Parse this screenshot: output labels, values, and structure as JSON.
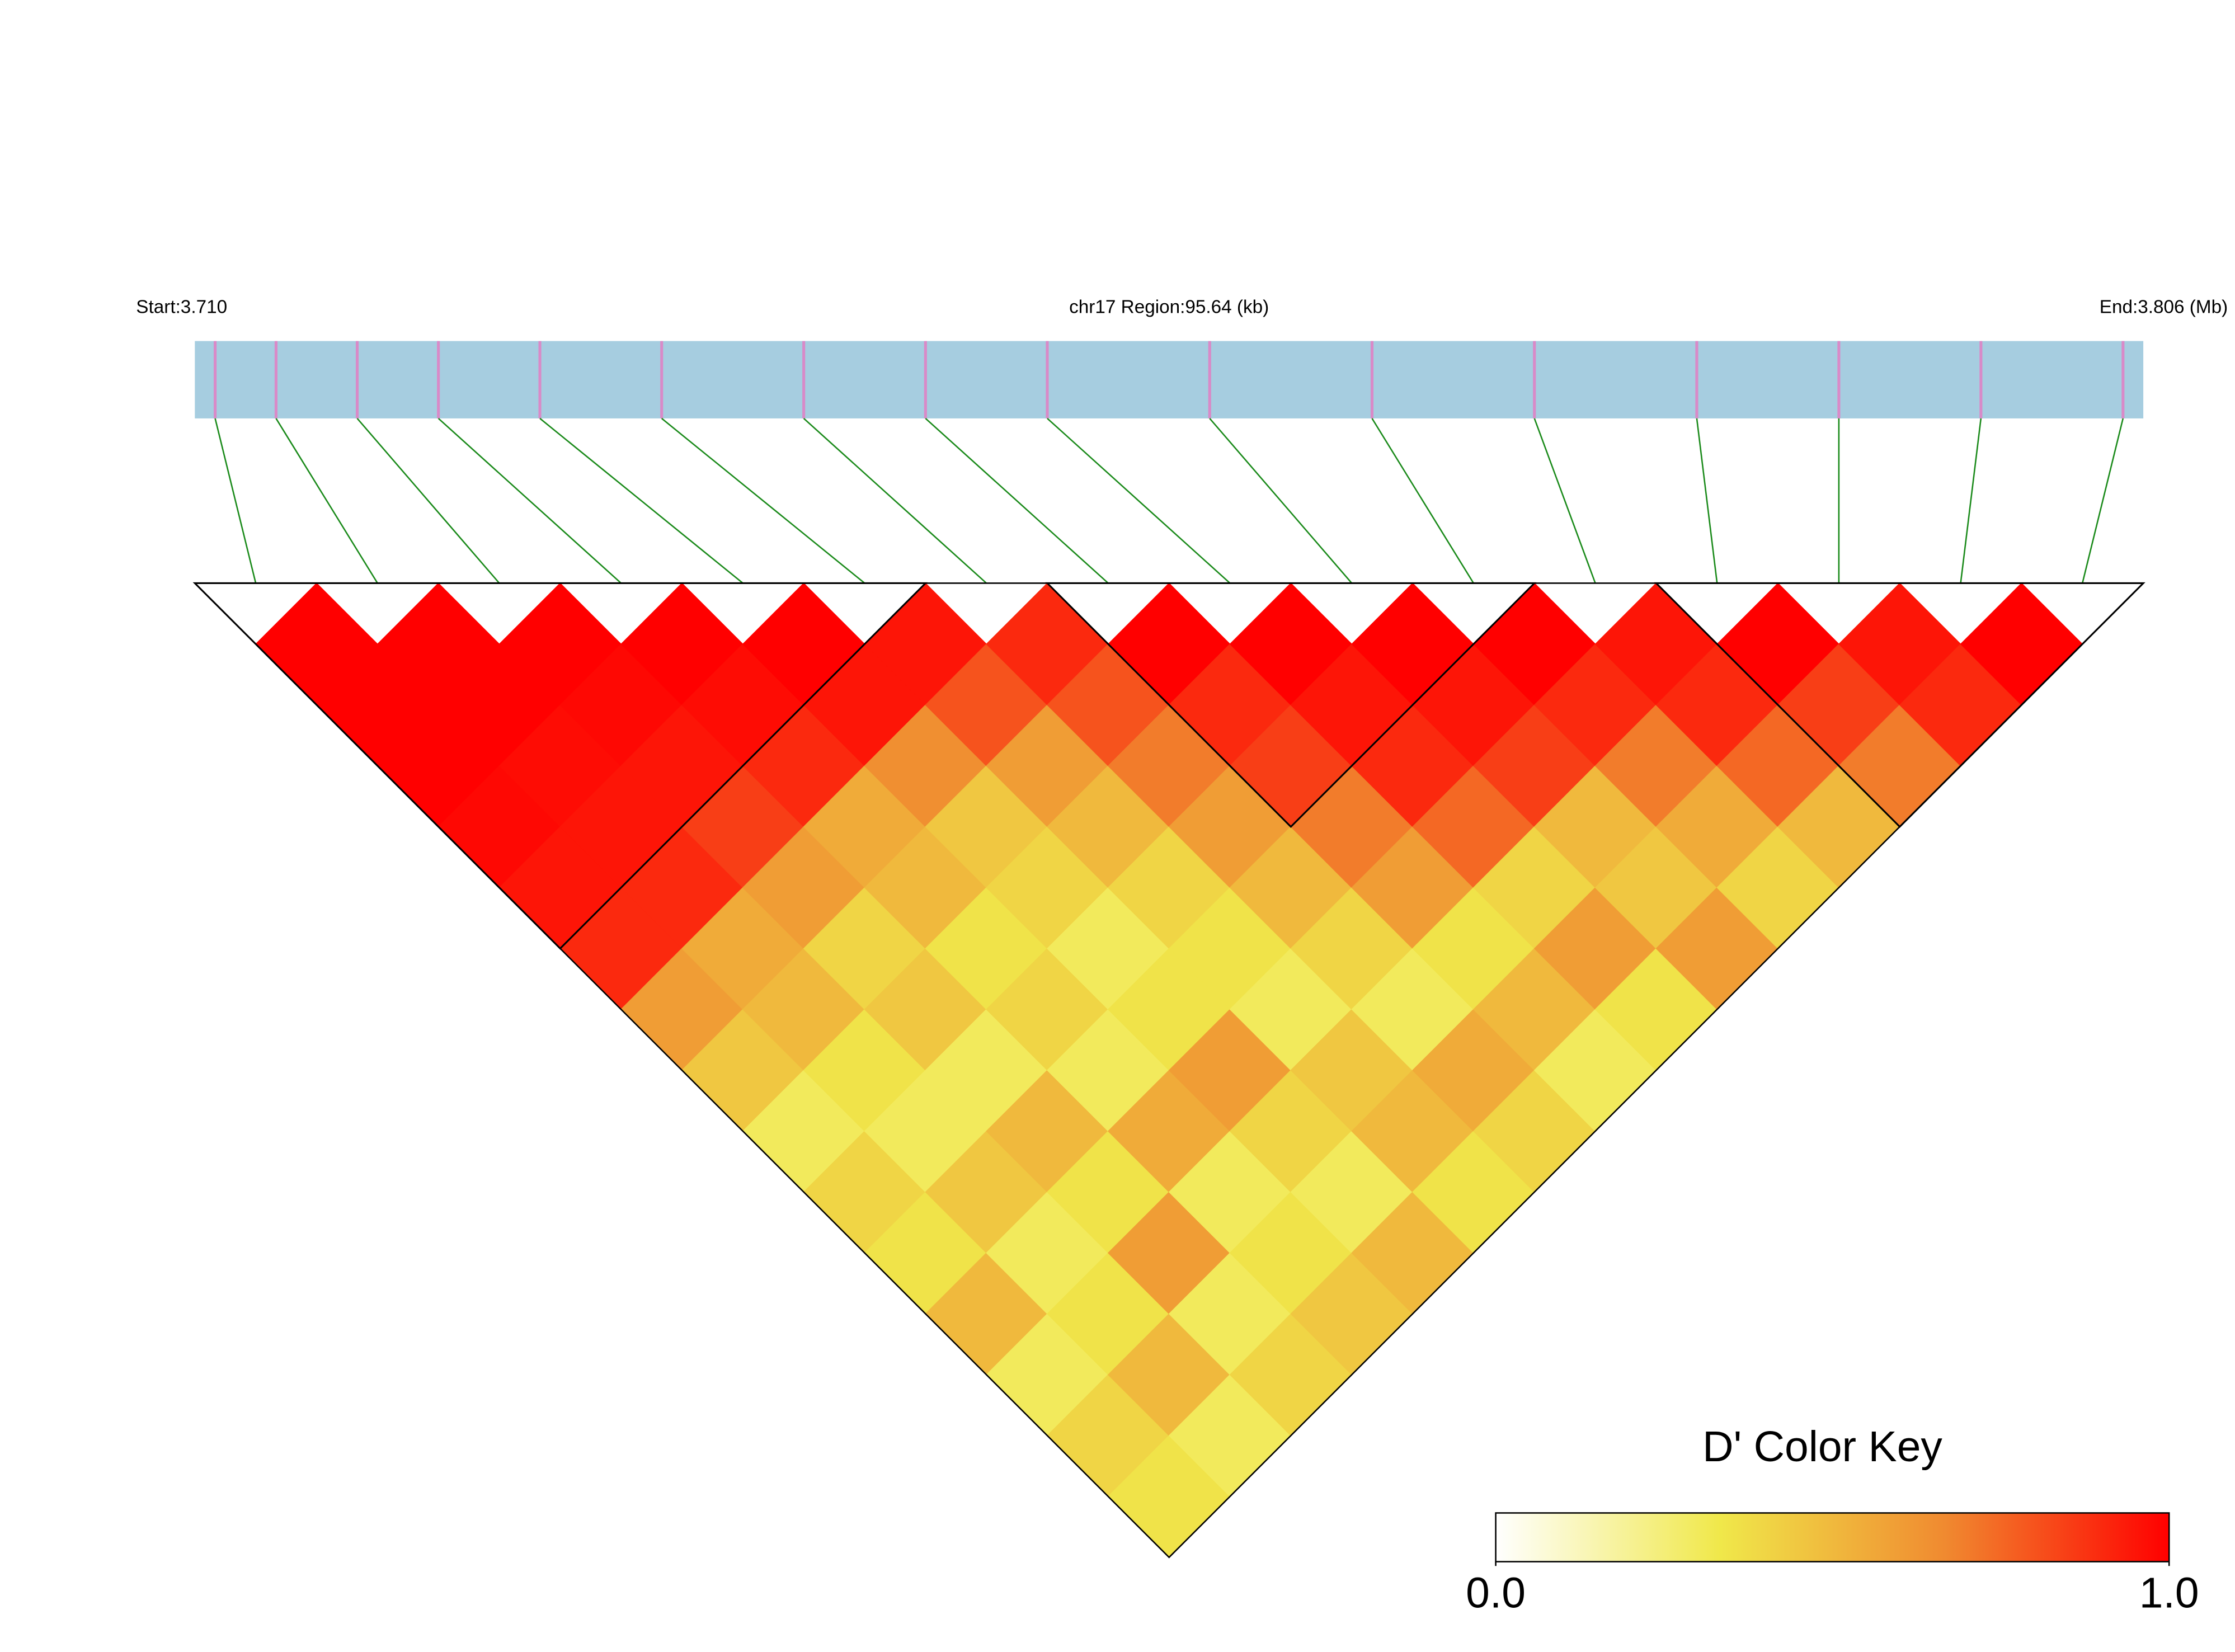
{
  "chart_data": {
    "type": "ldheatmap",
    "start_label": "Start:3.710",
    "region_label": "chr17 Region:95.64 (kb)",
    "end_label": "End:3.806 (Mb)",
    "xlim": [
      3.71,
      3.806
    ],
    "positions": [
      3.711,
      3.714,
      3.718,
      3.722,
      3.727,
      3.733,
      3.74,
      3.746,
      3.752,
      3.76,
      3.768,
      3.776,
      3.784,
      3.791,
      3.798,
      3.805
    ],
    "dprime": [
      [
        1,
        1,
        1,
        0.98,
        0.95,
        0.9,
        0.6,
        0.45,
        0.3,
        0.4,
        0.35,
        0.5,
        0.3,
        0.4,
        0.35
      ],
      [
        1,
        1,
        0.97,
        0.95,
        0.9,
        0.55,
        0.5,
        0.35,
        0.3,
        0.45,
        0.3,
        0.35,
        0.5,
        0.3
      ],
      [
        1,
        0.98,
        0.95,
        0.85,
        0.6,
        0.4,
        0.45,
        0.3,
        0.5,
        0.35,
        0.6,
        0.3,
        0.4
      ],
      [
        1,
        0.97,
        0.9,
        0.55,
        0.5,
        0.35,
        0.4,
        0.3,
        0.55,
        0.3,
        0.35,
        0.45
      ],
      [
        1,
        0.95,
        0.65,
        0.45,
        0.4,
        0.3,
        0.35,
        0.6,
        0.4,
        0.3,
        0.5
      ],
      [
        0.95,
        0.8,
        0.6,
        0.5,
        0.4,
        0.35,
        0.3,
        0.45,
        0.5,
        0.35
      ],
      [
        0.9,
        0.8,
        0.7,
        0.6,
        0.5,
        0.4,
        0.3,
        0.55,
        0.4
      ],
      [
        1,
        0.9,
        0.85,
        0.7,
        0.6,
        0.35,
        0.5,
        0.3
      ],
      [
        1,
        0.95,
        0.9,
        0.75,
        0.4,
        0.6,
        0.35
      ],
      [
        1,
        0.95,
        0.85,
        0.5,
        0.45,
        0.6
      ],
      [
        1,
        0.9,
        0.7,
        0.55,
        0.4
      ],
      [
        0.95,
        0.9,
        0.75,
        0.5
      ],
      [
        1,
        0.85,
        0.7
      ],
      [
        0.95,
        0.9
      ],
      [
        1
      ]
    ],
    "blocks": [
      [
        0,
        5
      ],
      [
        7,
        10
      ],
      [
        12,
        15
      ]
    ],
    "bar_color": "#a6cde0",
    "snp_color": "#d98ac8",
    "line_color": "#1a8a1a",
    "colors": [
      "#ffffff",
      "#f0e84a",
      "#f08a30",
      "#ff0000"
    ],
    "key_title": "D' Color Key",
    "key_ticks": [
      {
        "value": 0,
        "label": "0.0"
      },
      {
        "value": 1,
        "label": "1.0"
      }
    ]
  }
}
